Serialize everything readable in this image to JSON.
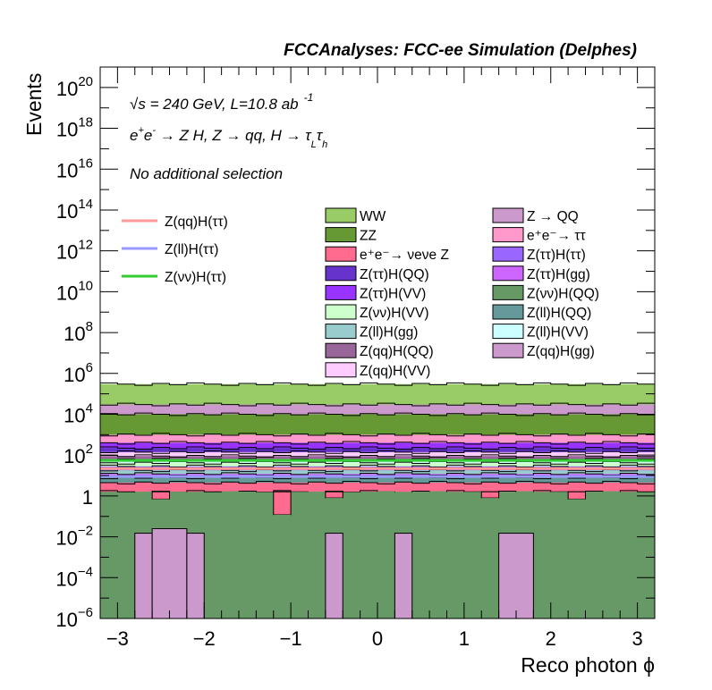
{
  "chart_data": {
    "type": "bar",
    "title": "FCCAnalyses: FCC-ee Simulation (Delphes)",
    "xlabel": "Reco photon ϕ",
    "ylabel": "Events",
    "xlim": [
      -3.2,
      3.2
    ],
    "ylim": [
      1e-06,
      1e+21
    ],
    "yscale": "log",
    "x_ticks": [
      {
        "value": -3,
        "label": "−3"
      },
      {
        "value": -2,
        "label": "−2"
      },
      {
        "value": -1,
        "label": "−1"
      },
      {
        "value": 0,
        "label": "0"
      },
      {
        "value": 1,
        "label": "1"
      },
      {
        "value": 2,
        "label": "2"
      },
      {
        "value": 3,
        "label": "3"
      }
    ],
    "y_ticks": [
      {
        "exp": -6,
        "base": "10",
        "sup": "−6"
      },
      {
        "exp": -4,
        "base": "10",
        "sup": "−4"
      },
      {
        "exp": -2,
        "base": "10",
        "sup": "−2"
      },
      {
        "exp": 0,
        "base": "1",
        "sup": ""
      },
      {
        "exp": 2,
        "base": "10",
        "sup": "2"
      },
      {
        "exp": 4,
        "base": "10",
        "sup": "4"
      },
      {
        "exp": 6,
        "base": "10",
        "sup": "6"
      },
      {
        "exp": 8,
        "base": "10",
        "sup": "8"
      },
      {
        "exp": 10,
        "base": "10",
        "sup": "10"
      },
      {
        "exp": 12,
        "base": "10",
        "sup": "12"
      },
      {
        "exp": 14,
        "base": "10",
        "sup": "14"
      },
      {
        "exp": 16,
        "base": "10",
        "sup": "16"
      },
      {
        "exp": 18,
        "base": "10",
        "sup": "18"
      },
      {
        "exp": 20,
        "base": "10",
        "sup": "20"
      }
    ],
    "annotations": {
      "energy": "√s = 240 GeV, L=10.8 ab⁻¹",
      "process": "e⁺e⁻ → Z H, Z → qq, H → τLτh",
      "selection": "No additional selection"
    },
    "bin_edges": [
      -3.2,
      -3.0,
      -2.8,
      -2.6,
      -2.4,
      -2.2,
      -2.0,
      -1.8,
      -1.6,
      -1.4,
      -1.2,
      -1.0,
      -0.8,
      -0.6,
      -0.4,
      -0.2,
      0.0,
      0.2,
      0.4,
      0.6,
      0.8,
      1.0,
      1.2,
      1.4,
      1.6,
      1.8,
      2.0,
      2.2,
      2.4,
      2.6,
      2.8,
      3.0,
      3.2
    ],
    "stacked_layers": [
      {
        "name": "Z(νν)H(QQ)",
        "color": "#669966",
        "level": 1.6
      },
      {
        "name": "e⁺e⁻→ νeνe Z",
        "color": "#ff6a8f",
        "level": 4.5
      },
      {
        "name": "Z(ll)H(QQ)",
        "color": "#669999",
        "level": 8
      },
      {
        "name": "Z(ττ)H(gg)",
        "color": "#cc66ff",
        "level": 12
      },
      {
        "name": "Z(ll)H(gg)",
        "color": "#99cccc",
        "level": 18
      },
      {
        "name": "Z(ττ)H(ττ)",
        "color": "#9966ff",
        "level": 28
      },
      {
        "name": "Z(νν)H(VV)",
        "color": "#ccffcc",
        "level": 42
      },
      {
        "name": "Z(ll)H(VV)",
        "color": "#ccffff",
        "level": 60
      },
      {
        "name": "Z(qq)H(QQ)",
        "color": "#996699",
        "level": 90
      },
      {
        "name": "Z(qq)H(VV)",
        "color": "#ffccff",
        "level": 140
      },
      {
        "name": "Z(ττ)H(QQ)",
        "color": "#6633cc",
        "level": 220
      },
      {
        "name": "Z(ττ)H(VV)",
        "color": "#9933ff",
        "level": 400
      },
      {
        "name": "e⁺e⁻→ ττ",
        "color": "#ff99cc",
        "level": 1000
      },
      {
        "name": "ZZ",
        "color": "#669933",
        "level": 10000
      },
      {
        "name": "Z → QQ",
        "color": "#cc99cc",
        "level": 30000
      },
      {
        "name": "WW",
        "color": "#99cc66",
        "level": 300000
      }
    ],
    "lowest_stack_bins": [
      {
        "x0": -3.2,
        "x1": -3.0,
        "value": 1.5
      },
      {
        "x0": -3.0,
        "x1": -2.8,
        "value": 1.5
      },
      {
        "x0": -2.8,
        "x1": -2.6,
        "value": 1.6
      },
      {
        "x0": -2.6,
        "x1": -2.4,
        "value": 1.7
      },
      {
        "x0": -2.4,
        "x1": -2.2,
        "value": 1.6
      },
      {
        "x0": -2.2,
        "x1": -2.0,
        "value": 1.5
      },
      {
        "x0": -2.0,
        "x1": -1.8,
        "value": 1.5
      },
      {
        "x0": -1.8,
        "x1": -1.6,
        "value": 1.7
      },
      {
        "x0": -1.6,
        "x1": -1.4,
        "value": 1.6
      },
      {
        "x0": -1.4,
        "x1": -1.2,
        "value": 1.5
      },
      {
        "x0": -1.2,
        "x1": -1.0,
        "value": 0.3
      },
      {
        "x0": -1.0,
        "x1": -0.8,
        "value": 1.6
      },
      {
        "x0": -0.8,
        "x1": -0.6,
        "value": 1.6
      },
      {
        "x0": -0.6,
        "x1": -0.4,
        "value": 1.7
      },
      {
        "x0": -0.4,
        "x1": -0.2,
        "value": 1.5
      },
      {
        "x0": -0.2,
        "x1": 0.0,
        "value": 1.6
      },
      {
        "x0": 0.0,
        "x1": 0.2,
        "value": 1.7
      },
      {
        "x0": 0.2,
        "x1": 0.4,
        "value": 1.5
      },
      {
        "x0": 0.4,
        "x1": 0.6,
        "value": 1.6
      },
      {
        "x0": 0.6,
        "x1": 0.8,
        "value": 1.7
      },
      {
        "x0": 0.8,
        "x1": 1.0,
        "value": 1.5
      },
      {
        "x0": 1.0,
        "x1": 1.2,
        "value": 1.6
      },
      {
        "x0": 1.2,
        "x1": 1.4,
        "value": 1.6
      },
      {
        "x0": 1.4,
        "x1": 1.6,
        "value": 1.5
      },
      {
        "x0": 1.6,
        "x1": 1.8,
        "value": 1.7
      },
      {
        "x0": 1.8,
        "x1": 2.0,
        "value": 1.5
      },
      {
        "x0": 2.0,
        "x1": 2.2,
        "value": 1.6
      },
      {
        "x0": 2.2,
        "x1": 2.4,
        "value": 1.5
      },
      {
        "x0": 2.4,
        "x1": 2.6,
        "value": 1.6
      },
      {
        "x0": 2.6,
        "x1": 2.8,
        "value": 1.7
      },
      {
        "x0": 2.8,
        "x1": 3.0,
        "value": 1.5
      },
      {
        "x0": 3.0,
        "x1": 3.2,
        "value": 1.5
      }
    ],
    "pink_dips": [
      {
        "x0": -2.6,
        "x1": -2.4,
        "value": 0.7
      },
      {
        "x0": -1.2,
        "x1": -1.0,
        "value": 0.12
      },
      {
        "x0": -0.6,
        "x1": -0.4,
        "value": 0.8
      },
      {
        "x0": 1.2,
        "x1": 1.4,
        "value": 0.8
      },
      {
        "x0": 2.2,
        "x1": 2.4,
        "value": 0.7
      }
    ],
    "z_qq_h_gg_bins": [
      {
        "x0": -2.8,
        "x1": -2.6,
        "value": 0.015
      },
      {
        "x0": -2.6,
        "x1": -2.2,
        "value": 0.025
      },
      {
        "x0": -2.2,
        "x1": -2.0,
        "value": 0.015
      },
      {
        "x0": -0.6,
        "x1": -0.4,
        "value": 0.015
      },
      {
        "x0": 0.2,
        "x1": 0.4,
        "value": 0.015
      },
      {
        "x0": 1.4,
        "x1": 1.8,
        "value": 0.015
      }
    ],
    "signal_lines": [
      {
        "name": "Z(qq)H(ττ)",
        "color": "#ff9999",
        "level": 22
      },
      {
        "name": "Z(ll)H(ττ)",
        "color": "#9999ff",
        "level": 9
      },
      {
        "name": "Z(νν)H(ττ)",
        "color": "#33cc33",
        "level": 55
      }
    ],
    "legend_signal": [
      {
        "label": "Z(qq)H(ττ)",
        "color": "#ff9999"
      },
      {
        "label": "Z(ll)H(ττ)",
        "color": "#9999ff"
      },
      {
        "label": "Z(νν)H(ττ)",
        "color": "#33cc33"
      }
    ],
    "legend_bkg": [
      {
        "label": "WW",
        "color": "#99cc66"
      },
      {
        "label": "Z → QQ",
        "color": "#cc99cc"
      },
      {
        "label": "ZZ",
        "color": "#669933"
      },
      {
        "label": "e⁺e⁻→ ττ",
        "color": "#ff99cc"
      },
      {
        "label": "e⁺e⁻→ νeνe Z",
        "color": "#ff6a8f"
      },
      {
        "label": "Z(ττ)H(ττ)",
        "color": "#9966ff"
      },
      {
        "label": "Z(ττ)H(QQ)",
        "color": "#6633cc"
      },
      {
        "label": "Z(ττ)H(gg)",
        "color": "#cc66ff"
      },
      {
        "label": "Z(ττ)H(VV)",
        "color": "#9933ff"
      },
      {
        "label": "Z(νν)H(QQ)",
        "color": "#669966"
      },
      {
        "label": "Z(νν)H(VV)",
        "color": "#ccffcc"
      },
      {
        "label": "Z(ll)H(QQ)",
        "color": "#669999"
      },
      {
        "label": "Z(ll)H(gg)",
        "color": "#99cccc"
      },
      {
        "label": "Z(ll)H(VV)",
        "color": "#ccffff"
      },
      {
        "label": "Z(qq)H(QQ)",
        "color": "#996699"
      },
      {
        "label": "Z(qq)H(gg)",
        "color": "#cc99cc"
      },
      {
        "label": "Z(qq)H(VV)",
        "color": "#ffccff"
      }
    ]
  }
}
